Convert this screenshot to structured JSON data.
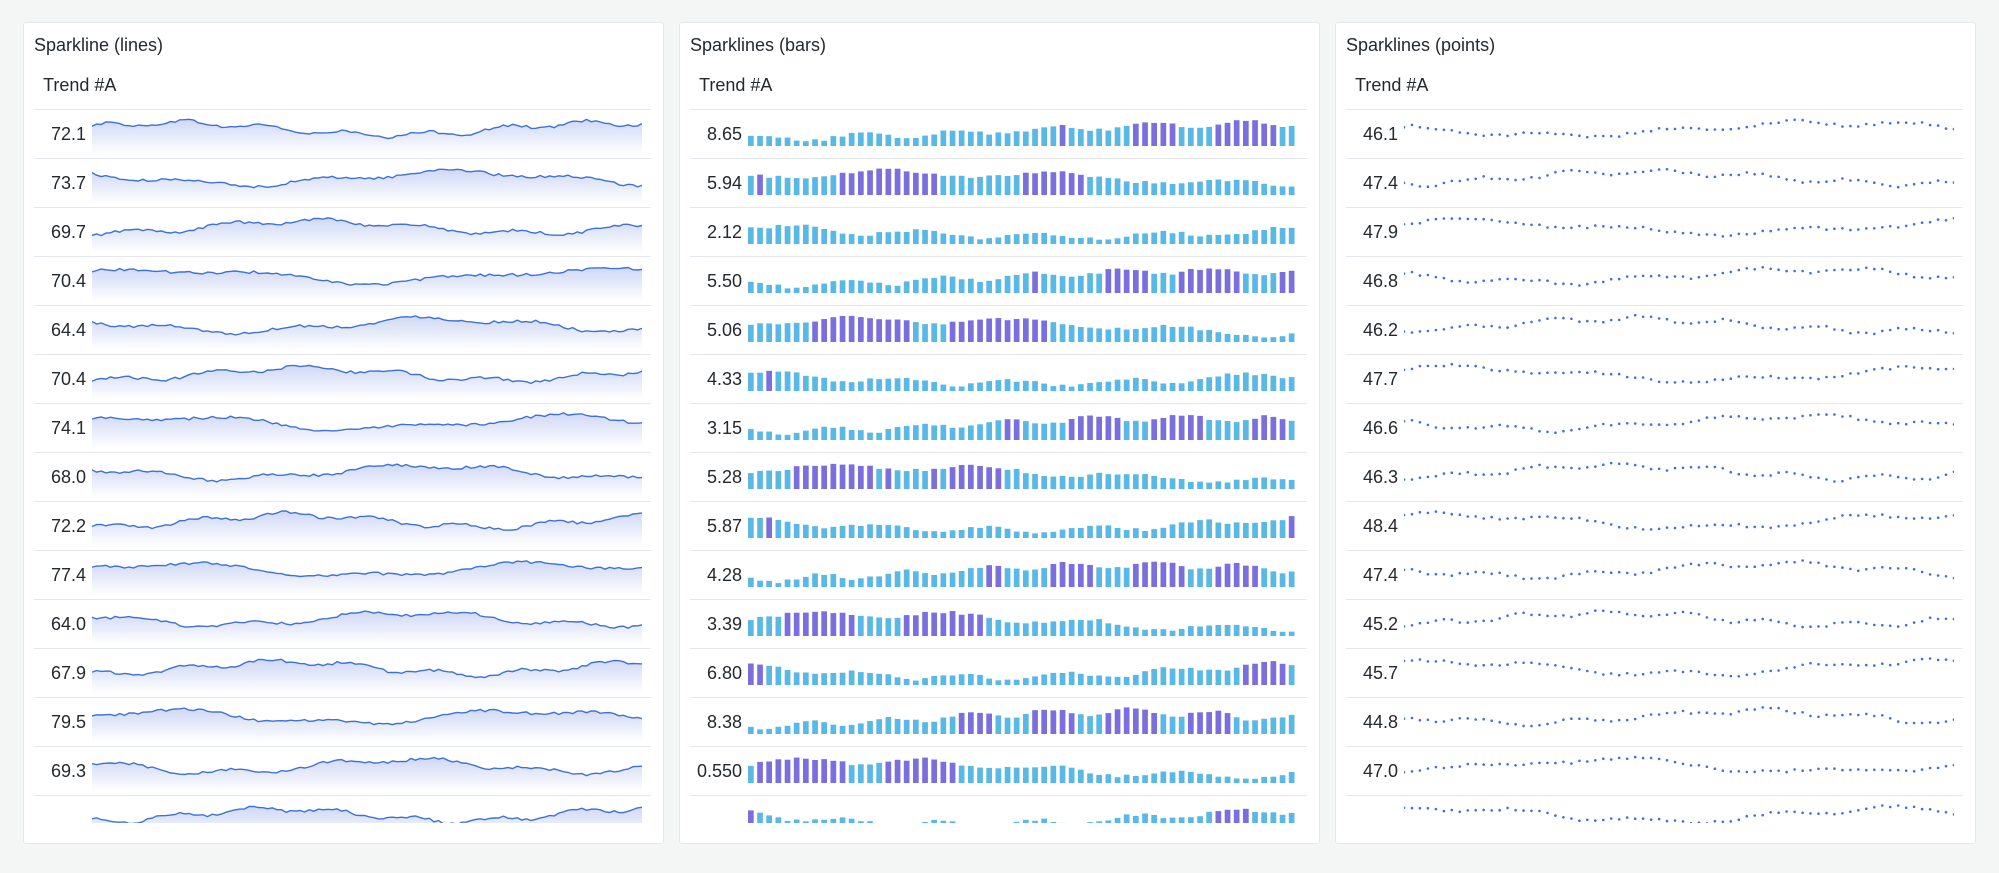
{
  "panels": [
    {
      "id": "lines",
      "title": "Sparkline (lines)",
      "column_header": "Trend #A",
      "values": [
        "72.1",
        "73.7",
        "69.7",
        "70.4",
        "64.4",
        "70.4",
        "74.1",
        "68.0",
        "72.2",
        "77.4",
        "64.0",
        "67.9",
        "79.5",
        "69.3"
      ]
    },
    {
      "id": "bars",
      "title": "Sparklines (bars)",
      "column_header": "Trend #A",
      "values": [
        "8.65",
        "5.94",
        "2.12",
        "5.50",
        "5.06",
        "4.33",
        "3.15",
        "5.28",
        "5.87",
        "4.28",
        "3.39",
        "6.80",
        "8.38",
        "0.550"
      ]
    },
    {
      "id": "points",
      "title": "Sparklines (points)",
      "column_header": "Trend #A",
      "values": [
        "46.1",
        "47.4",
        "47.9",
        "46.8",
        "46.2",
        "47.7",
        "46.6",
        "46.3",
        "48.4",
        "47.4",
        "45.2",
        "45.7",
        "44.8",
        "47.0"
      ]
    }
  ],
  "colors": {
    "line": "#3d71d9",
    "bar_low": "#5ab8e6",
    "bar_high": "#7b6fe0",
    "point": "#3d71d9"
  }
}
